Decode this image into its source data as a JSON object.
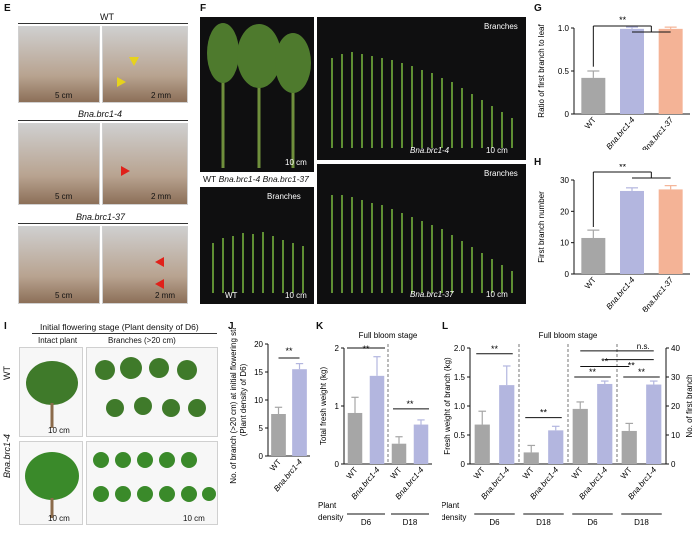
{
  "panels": {
    "E": {
      "label": "E",
      "rows": [
        {
          "title": "WT",
          "scale_left": "5 cm",
          "scale_right": "2 mm"
        },
        {
          "title": "Bna.brc1-4",
          "scale_left": "5 cm",
          "scale_right": "2 mm"
        },
        {
          "title": "Bna.brc1-37",
          "scale_left": "5 cm",
          "scale_right": "2 mm"
        }
      ]
    },
    "F": {
      "label": "F",
      "left_top_scale": "10 cm",
      "genotypes_line": [
        "WT",
        "Bna.brc1-4",
        "Bna.brc1-37"
      ],
      "left_bottom": {
        "title": "Branches",
        "genotype": "WT",
        "scale": "10 cm"
      },
      "right_top": {
        "title": "Branches",
        "genotype": "Bna.brc1-4",
        "scale": "10 cm"
      },
      "right_bottom": {
        "title": "Branches",
        "genotype": "Bna.brc1-37",
        "scale": "10 cm"
      }
    },
    "I": {
      "label": "I",
      "title": "Initial flowering stage (Plant density of D6)",
      "col1": "Intact plant",
      "col2": "Branches (>20 cm)",
      "row1": "WT",
      "row2": "Bna.brc1-4",
      "scale1": "10 cm",
      "scale2": "10 cm",
      "scale3": "10 cm"
    },
    "G": {
      "label": "G"
    },
    "H": {
      "label": "H"
    },
    "J": {
      "label": "J"
    },
    "K": {
      "label": "K"
    },
    "L": {
      "label": "L"
    }
  },
  "chart_data": [
    {
      "id": "G",
      "type": "bar",
      "categories": [
        "WT",
        "Bna.brc1-4",
        "Bna.brc1-37"
      ],
      "values": [
        0.42,
        0.99,
        0.99
      ],
      "errors": [
        0.08,
        0.02,
        0.02
      ],
      "colors": [
        "#a6a6a6",
        "#b3b6df",
        "#f4b396"
      ],
      "ylabel": "Ratio of first branch to leaf",
      "ylim": [
        0,
        1.0
      ],
      "yticks": [
        0,
        0.5,
        1.0
      ],
      "ytick_labels": [
        "0",
        "0.5",
        "1.0"
      ],
      "significance": "**"
    },
    {
      "id": "H",
      "type": "bar",
      "categories": [
        "WT",
        "Bna.brc1-4",
        "Bna.brc1-37"
      ],
      "values": [
        11.5,
        26.5,
        27
      ],
      "errors": [
        2.5,
        1,
        1.2
      ],
      "colors": [
        "#a6a6a6",
        "#b3b6df",
        "#f4b396"
      ],
      "ylabel": "First branch number",
      "ylim": [
        0,
        30
      ],
      "yticks": [
        0,
        10,
        20,
        30
      ],
      "ytick_labels": [
        "0",
        "10",
        "20",
        "30"
      ],
      "significance": "**"
    },
    {
      "id": "J",
      "type": "bar",
      "categories": [
        "WT",
        "Bna.brc1-4"
      ],
      "values": [
        7.5,
        15.5
      ],
      "errors": [
        1.2,
        1.0
      ],
      "colors": [
        "#a6a6a6",
        "#b3b6df"
      ],
      "ylabel": "No. of branch (>20 cm) at initial flowering stage (Plant density of D6)",
      "ylim": [
        0,
        20
      ],
      "yticks": [
        0,
        5,
        10,
        15,
        20
      ],
      "ytick_labels": [
        "0",
        "5",
        "10",
        "15",
        "20"
      ],
      "significance": "**"
    },
    {
      "id": "K",
      "type": "bar",
      "title": "Full bloom stage",
      "categories": [
        "WT",
        "Bna.brc1-4",
        "WT",
        "Bna.brc1-4"
      ],
      "groups": [
        "D6",
        "D18"
      ],
      "values": [
        0.88,
        1.52,
        0.35,
        0.68
      ],
      "errors": [
        0.27,
        0.33,
        0.12,
        0.08
      ],
      "colors": [
        "#a6a6a6",
        "#b3b6df",
        "#a6a6a6",
        "#b3b6df"
      ],
      "ylabel": "Total fresh weight (kg)",
      "ylim": [
        0,
        2
      ],
      "yticks": [
        0,
        1,
        2
      ],
      "ytick_labels": [
        "0",
        "1",
        "2"
      ],
      "xaxis_caption": "Plant density",
      "significance": [
        "**",
        "**"
      ]
    },
    {
      "id": "L",
      "type": "bar",
      "title": "Full bloom stage",
      "categories": [
        "WT",
        "Bna.brc1-4",
        "WT",
        "Bna.brc1-4",
        "WT",
        "Bna.brc1-4",
        "WT",
        "Bna.brc1-4"
      ],
      "groups": [
        "D6",
        "D18",
        "D6",
        "D18"
      ],
      "values": [
        0.68,
        1.36,
        0.2,
        0.58,
        0.95,
        1.38,
        0.57,
        1.37
      ],
      "errors": [
        0.23,
        0.33,
        0.12,
        0.07,
        0.12,
        0.05,
        0.13,
        0.06
      ],
      "colors": [
        "#a6a6a6",
        "#b3b6df",
        "#a6a6a6",
        "#b3b6df",
        "#a6a6a6",
        "#b3b6df",
        "#a6a6a6",
        "#b3b6df"
      ],
      "ylabel": "Fresh weight of branch (kg)",
      "ylim": [
        0,
        2
      ],
      "yticks": [
        0,
        0.5,
        1.0,
        1.5,
        2.0
      ],
      "ytick_labels": [
        "0",
        "0.5",
        "1.0",
        "1.5",
        "2.0"
      ],
      "y2label": "No. of first branch",
      "y2lim": [
        0,
        40
      ],
      "y2ticks": [
        0,
        10,
        20,
        30,
        40
      ],
      "y2tick_labels": [
        "0",
        "10",
        "20",
        "30",
        "40"
      ],
      "xaxis_caption": "Plant density",
      "significance": [
        "**",
        "**",
        "**",
        "**",
        "**",
        "**"
      ],
      "ns_label": "n.s."
    }
  ]
}
